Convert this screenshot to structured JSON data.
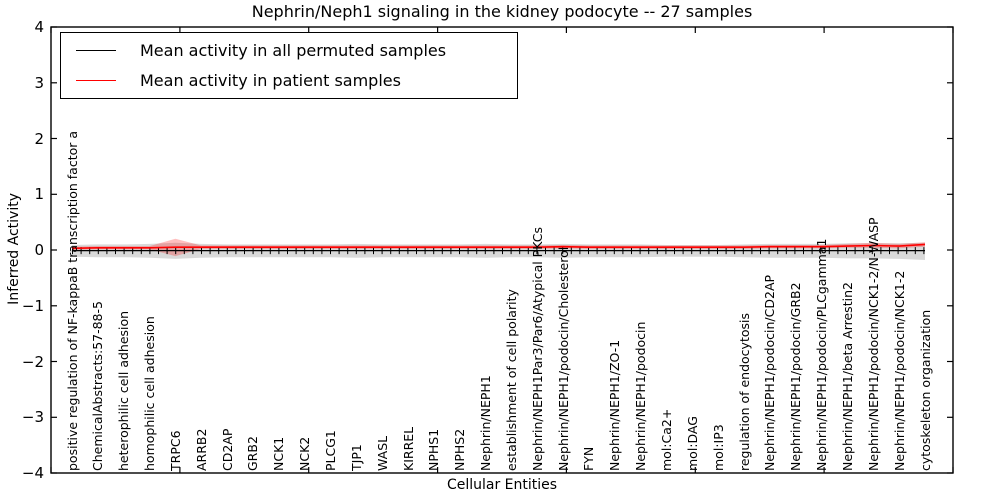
{
  "chart_data": {
    "type": "line",
    "title": "Nephrin/Neph1 signaling in the kidney podocyte -- 27 samples",
    "xlabel": "Cellular Entities",
    "ylabel": "Inferred Activity",
    "ylim": [
      -4,
      4
    ],
    "yticks": [
      4,
      3,
      2,
      1,
      0,
      -1,
      -2,
      -3,
      -4
    ],
    "grid": false,
    "legend_position": "upper left",
    "categories": [
      "positive regulation of NF-kappaB transcription factor a",
      "ChemicalAbstracts:57-88-5",
      "heterophilic cell adhesion",
      "homophilic cell adhesion",
      "TRPC6",
      "ARRB2",
      "CD2AP",
      "GRB2",
      "NCK1",
      "NCK2",
      "PLCG1",
      "TJP1",
      "WASL",
      "KIRREL",
      "NPHS1",
      "NPHS2",
      "Nephrin/NEPH1",
      "establishment of cell polarity",
      "Nephrin/NEPH1Par3/Par6/Atypical PKCs",
      "Nephrin/NEPH1/podocin/Cholesterol",
      "FYN",
      "Nephrin/NEPH1/ZO-1",
      "Nephrin/NEPH1/podocin",
      "mol:Ca2+",
      "mol:DAG",
      "mol:IP3",
      "regulation of endocytosis",
      "Nephrin/NEPH1/podocin/CD2AP",
      "Nephrin/NEPH1/podocin/GRB2",
      "Nephrin/NEPH1/podocin/PLCgamma1",
      "Nephrin/NEPH1/beta Arrestin2",
      "Nephrin/NEPH1/podocin/NCK1-2/N-WASP",
      "Nephrin/NEPH1/podocin/NCK1-2",
      "cytoskeleton organization"
    ],
    "series": [
      {
        "name": "Mean activity in all permuted samples",
        "color": "#000000",
        "band_color": "rgba(0,0,0,0.15)",
        "values": [
          -0.01,
          -0.01,
          -0.01,
          -0.01,
          -0.01,
          -0.01,
          -0.01,
          -0.01,
          -0.01,
          -0.01,
          -0.01,
          -0.01,
          -0.01,
          -0.01,
          -0.01,
          -0.01,
          -0.01,
          -0.01,
          -0.01,
          -0.01,
          -0.01,
          -0.01,
          -0.01,
          -0.01,
          -0.01,
          -0.01,
          -0.01,
          -0.01,
          -0.01,
          -0.01,
          -0.01,
          -0.01,
          -0.01,
          -0.01
        ],
        "band_upper": [
          0.09,
          0.1,
          0.1,
          0.11,
          0.13,
          0.11,
          0.1,
          0.1,
          0.1,
          0.1,
          0.1,
          0.11,
          0.1,
          0.1,
          0.1,
          0.1,
          0.11,
          0.1,
          0.1,
          0.11,
          0.1,
          0.1,
          0.1,
          0.09,
          0.09,
          0.09,
          0.1,
          0.11,
          0.11,
          0.11,
          0.12,
          0.12,
          0.12,
          0.13
        ],
        "band_lower": [
          -0.12,
          -0.13,
          -0.13,
          -0.14,
          -0.16,
          -0.14,
          -0.13,
          -0.13,
          -0.13,
          -0.13,
          -0.13,
          -0.14,
          -0.13,
          -0.13,
          -0.13,
          -0.13,
          -0.14,
          -0.13,
          -0.13,
          -0.14,
          -0.13,
          -0.13,
          -0.13,
          -0.12,
          -0.12,
          -0.12,
          -0.13,
          -0.14,
          -0.14,
          -0.14,
          -0.15,
          -0.15,
          -0.16,
          -0.18
        ]
      },
      {
        "name": "Mean activity in patient samples",
        "color": "#ff0000",
        "band_color": "rgba(255,0,0,0.25)",
        "values": [
          0.03,
          0.04,
          0.04,
          0.04,
          0.05,
          0.05,
          0.05,
          0.05,
          0.05,
          0.05,
          0.05,
          0.05,
          0.05,
          0.05,
          0.05,
          0.05,
          0.05,
          0.05,
          0.05,
          0.06,
          0.05,
          0.05,
          0.05,
          0.05,
          0.05,
          0.05,
          0.05,
          0.06,
          0.06,
          0.06,
          0.07,
          0.08,
          0.07,
          0.1
        ],
        "band_upper": [
          0.06,
          0.07,
          0.07,
          0.07,
          0.2,
          0.08,
          0.08,
          0.08,
          0.08,
          0.08,
          0.08,
          0.08,
          0.08,
          0.08,
          0.08,
          0.08,
          0.08,
          0.08,
          0.08,
          0.09,
          0.08,
          0.08,
          0.08,
          0.08,
          0.08,
          0.08,
          0.08,
          0.09,
          0.09,
          0.09,
          0.11,
          0.13,
          0.11,
          0.14
        ],
        "band_lower": [
          0.0,
          0.01,
          0.01,
          0.01,
          -0.11,
          0.02,
          0.02,
          0.02,
          0.02,
          0.02,
          0.02,
          0.02,
          0.02,
          0.02,
          0.02,
          0.02,
          0.02,
          0.02,
          0.02,
          0.03,
          0.02,
          0.02,
          0.02,
          0.02,
          0.02,
          0.02,
          0.02,
          0.03,
          0.03,
          0.03,
          0.04,
          0.04,
          0.03,
          0.06
        ]
      }
    ]
  }
}
